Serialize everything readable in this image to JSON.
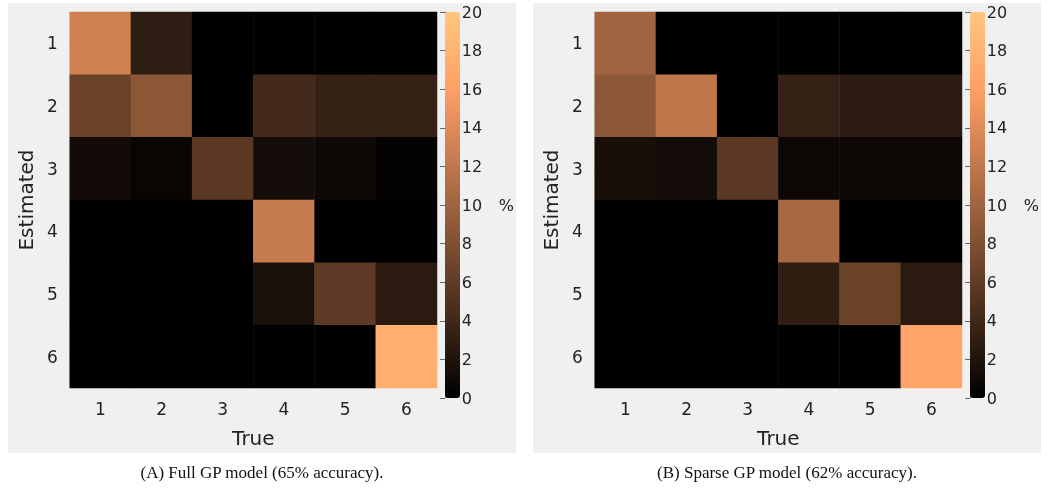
{
  "chart_data": [
    {
      "type": "heatmap",
      "xlabel": "True",
      "ylabel": "Estimated",
      "clabel": "%",
      "categories": [
        "1",
        "2",
        "3",
        "4",
        "5",
        "6"
      ],
      "y_categories": [
        "1",
        "2",
        "3",
        "4",
        "5",
        "6"
      ],
      "cells": [
        [
          13,
          2.9,
          0,
          0,
          0,
          0
        ],
        [
          6.7,
          8.7,
          0,
          4.1,
          3.3,
          3.3
        ],
        [
          1.1,
          0.5,
          5.6,
          1.2,
          0.9,
          0.3
        ],
        [
          0,
          0,
          0,
          12.5,
          0,
          0
        ],
        [
          0,
          0,
          0,
          1.6,
          5.8,
          2.6
        ],
        [
          0,
          0,
          0,
          0,
          0,
          17.5
        ]
      ],
      "clim": [
        0,
        20
      ],
      "cticks": [
        0,
        2,
        4,
        6,
        8,
        10,
        12,
        14,
        16,
        18,
        20
      ],
      "annotations": [
        "(A) Full GP model (65% accuracy)."
      ]
    },
    {
      "type": "heatmap",
      "xlabel": "True",
      "ylabel": "Estimated",
      "clabel": "%",
      "categories": [
        "1",
        "2",
        "3",
        "4",
        "5",
        "6"
      ],
      "y_categories": [
        "1",
        "2",
        "3",
        "4",
        "5",
        "6"
      ],
      "cells": [
        [
          10,
          0,
          0,
          0,
          0,
          0
        ],
        [
          8.8,
          12,
          0,
          3.3,
          2.8,
          2.8
        ],
        [
          1.5,
          1.2,
          5.6,
          0.8,
          0.8,
          0.8
        ],
        [
          0,
          0,
          0,
          10.5,
          0,
          0
        ],
        [
          0,
          0,
          0,
          3,
          6.6,
          2.6
        ],
        [
          0,
          0,
          0,
          0,
          0,
          16.5
        ]
      ],
      "clim": [
        0,
        20
      ],
      "cticks": [
        0,
        2,
        4,
        6,
        8,
        10,
        12,
        14,
        16,
        18,
        20
      ],
      "annotations": [
        "(B) Sparse GP model (62% accuracy)."
      ]
    }
  ]
}
